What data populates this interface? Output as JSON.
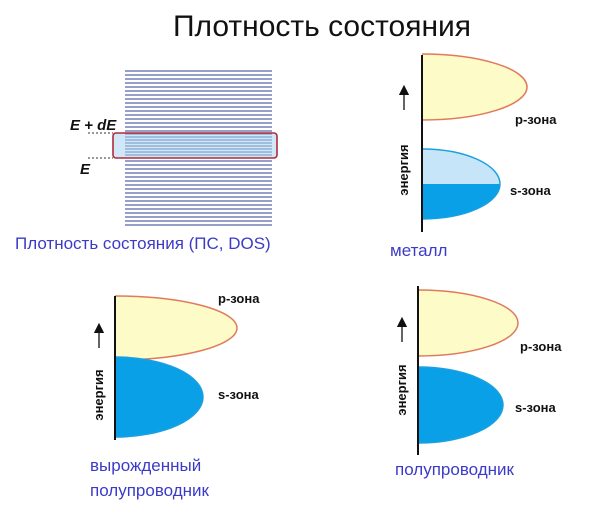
{
  "title": "Плотность состояния",
  "dos_panel": {
    "upper_level": "E + dE",
    "lower_level": "E",
    "caption": "Плотность состояния (ПС, DOS)"
  },
  "panels": [
    {
      "axis_label": "энергия",
      "p_band": "p-зона",
      "s_band": "s-зона",
      "caption": [
        "металл"
      ]
    },
    {
      "axis_label": "энергия",
      "p_band": "p-зона",
      "s_band": "s-зона",
      "caption": [
        "вырожденный",
        "полупроводник"
      ]
    },
    {
      "axis_label": "энергия",
      "p_band": "p-зона",
      "s_band": "s-зона",
      "caption": [
        "полупроводник"
      ]
    }
  ]
}
